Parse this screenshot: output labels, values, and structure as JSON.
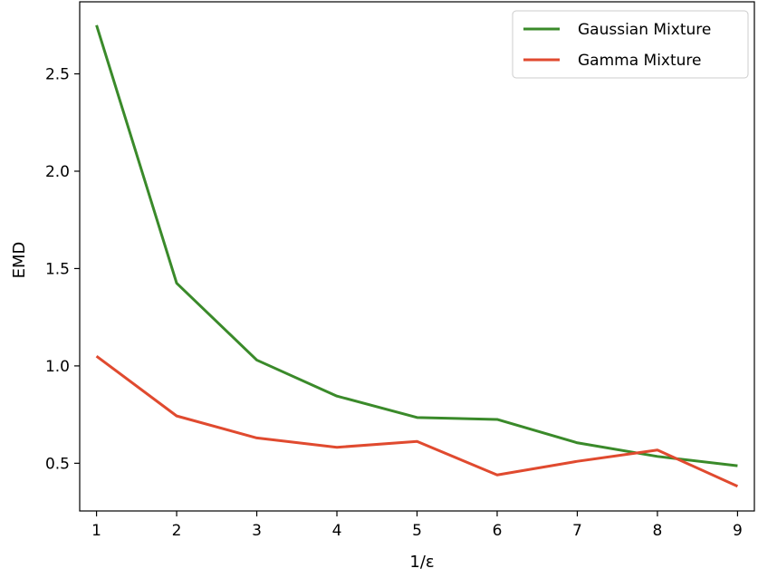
{
  "chart_data": {
    "type": "line",
    "title": "",
    "xlabel": "1/ε",
    "ylabel": "EMD",
    "xlim": [
      0.79,
      9.21
    ],
    "ylim": [
      0.255,
      2.87
    ],
    "xticks": [
      1,
      2,
      3,
      4,
      5,
      6,
      7,
      8,
      9
    ],
    "xtick_labels": [
      "1",
      "2",
      "3",
      "4",
      "5",
      "6",
      "7",
      "8",
      "9"
    ],
    "yticks": [
      0.5,
      1.0,
      1.5,
      2.0,
      2.5
    ],
    "ytick_labels": [
      "0.5",
      "1.0",
      "1.5",
      "2.0",
      "2.5"
    ],
    "grid": false,
    "legend_position": "top-right",
    "x": [
      1,
      2,
      3,
      4,
      5,
      6,
      7,
      8,
      9
    ],
    "series": [
      {
        "name": "Gaussian Mixture",
        "color": "#3a8a2a",
        "values": [
          2.75,
          1.425,
          1.03,
          0.845,
          0.735,
          0.725,
          0.605,
          0.535,
          0.487
        ]
      },
      {
        "name": "Gamma Mixture",
        "color": "#e04a2f",
        "values": [
          1.05,
          0.743,
          0.63,
          0.582,
          0.612,
          0.44,
          0.51,
          0.568,
          0.382
        ]
      }
    ]
  }
}
